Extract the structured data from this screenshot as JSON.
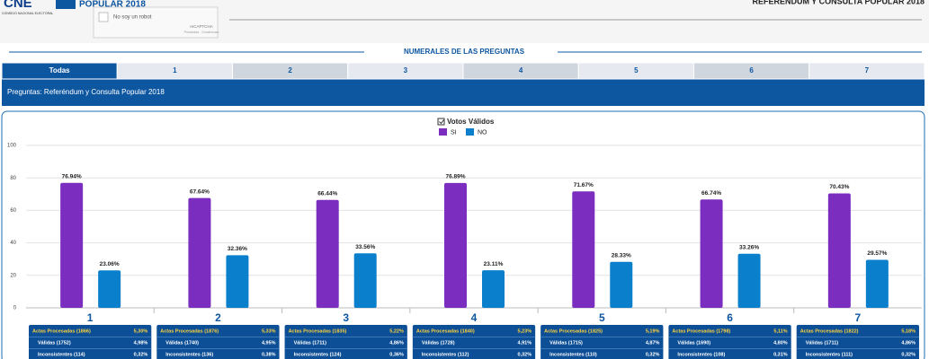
{
  "header": {
    "logo_text": "CNE",
    "logo_sub": "CONSEJO NACIONAL ELECTORAL",
    "brand": "POPULAR 2018",
    "captcha_label": "No soy un robot",
    "captcha_brand": "reCAPTCHA",
    "captcha_links": "Privacidad - Condiciones",
    "top_title": "REFERÉNDUM Y CONSULTA POPULAR 2018"
  },
  "section_title": "NUMERALES DE LAS PREGUNTAS",
  "tabs": [
    "Todas",
    "1",
    "2",
    "3",
    "4",
    "5",
    "6",
    "7"
  ],
  "banner": "Preguntas: Referéndum y Consulta Popular 2018",
  "chart_data": {
    "type": "bar",
    "legend_title": "Votos Válidos",
    "categories": [
      "1",
      "2",
      "3",
      "4",
      "5",
      "6",
      "7"
    ],
    "series": [
      {
        "name": "SI",
        "color": "#7b2dbf",
        "values": [
          76.94,
          67.64,
          66.44,
          76.89,
          71.67,
          66.74,
          70.43
        ],
        "value_labels": [
          "76.94%",
          "67.64%",
          "66.44%",
          "76.89%",
          "71.67%",
          "66.74%",
          "70.43%"
        ]
      },
      {
        "name": "NO",
        "color": "#0a80cc",
        "values": [
          23.06,
          32.36,
          33.56,
          23.11,
          28.33,
          33.26,
          29.57
        ],
        "value_labels": [
          "23.06%",
          "32.36%",
          "33.56%",
          "23.11%",
          "28.33%",
          "33.26%",
          "29.57%"
        ]
      }
    ],
    "ylim": [
      0,
      100
    ],
    "yticks": [
      0,
      20,
      40,
      60,
      80,
      100
    ],
    "grid": true
  },
  "stats": [
    [
      [
        "Actas Procesadas (1866)",
        "5,30%"
      ],
      [
        "Válidas (1752)",
        "4,98%"
      ],
      [
        "Inconsistentes (114)",
        "0,32%"
      ]
    ],
    [
      [
        "Actas Procesadas (1876)",
        "5,33%"
      ],
      [
        "Válidas (1740)",
        "4,95%"
      ],
      [
        "Inconsistentes (136)",
        "0,38%"
      ]
    ],
    [
      [
        "Actas Procesadas (1835)",
        "5,22%"
      ],
      [
        "Válidas (1711)",
        "4,86%"
      ],
      [
        "Inconsistentes (124)",
        "0,36%"
      ]
    ],
    [
      [
        "Actas Procesadas (1840)",
        "5,23%"
      ],
      [
        "Válidas (1728)",
        "4,91%"
      ],
      [
        "Inconsistentes (112)",
        "0,32%"
      ]
    ],
    [
      [
        "Actas Procesadas (1825)",
        "5,19%"
      ],
      [
        "Válidas (1715)",
        "4,87%"
      ],
      [
        "Inconsistentes (110)",
        "0,32%"
      ]
    ],
    [
      [
        "Actas Procesadas (1798)",
        "5,11%"
      ],
      [
        "Válidas (1690)",
        "4,80%"
      ],
      [
        "Inconsistentes (108)",
        "0,31%"
      ]
    ],
    [
      [
        "Actas Procesadas (1822)",
        "5,18%"
      ],
      [
        "Válidas (1711)",
        "4,86%"
      ],
      [
        "Inconsistentes (111)",
        "0,32%"
      ]
    ]
  ]
}
